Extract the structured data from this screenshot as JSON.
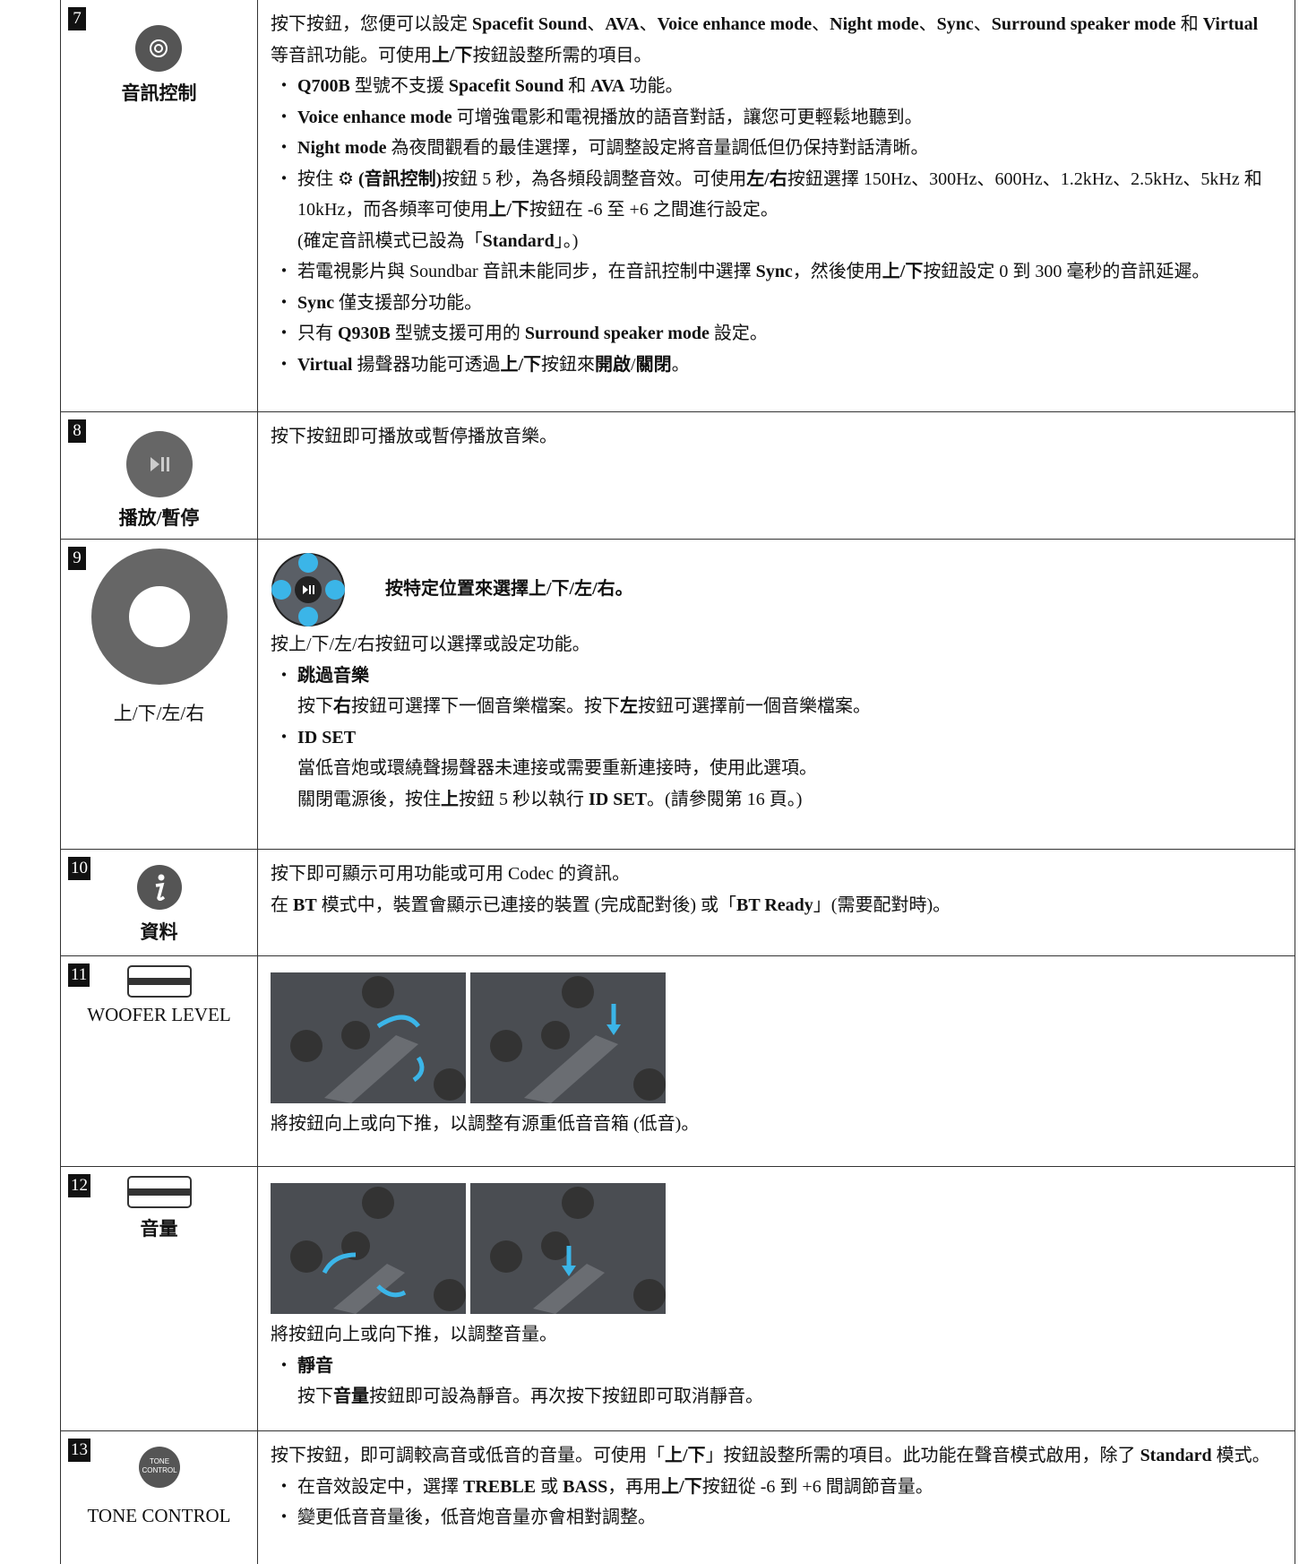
{
  "rows": [
    {
      "number": "7",
      "label": "音訊控制",
      "label_bold": true,
      "paragraphs": [
        {
          "segments": [
            "按下按鈕，您便可以設定 ",
            {
              "b": "Spacefit Sound"
            },
            "、",
            {
              "b": "AVA"
            },
            "、",
            {
              "b": "Voice enhance mode"
            },
            "、",
            {
              "b": "Night mode"
            },
            "、",
            {
              "b": "Sync"
            },
            "、",
            {
              "b": "Surround speaker mode"
            },
            " 和 ",
            {
              "b": "Virtual"
            },
            " 等音訊功能。可使用",
            {
              "b": "上/下"
            },
            "按鈕設整所需的項目。"
          ]
        },
        {
          "bullet": "・",
          "segments": [
            {
              "b": "Q700B"
            },
            " 型號不支援 ",
            {
              "b": "Spacefit Sound"
            },
            " 和 ",
            {
              "b": "AVA"
            },
            " 功能。"
          ]
        },
        {
          "bullet": "・",
          "segments": [
            {
              "b": "Voice enhance mode"
            },
            " 可增強電影和電視播放的語音對話，讓您可更輕鬆地聽到。"
          ]
        },
        {
          "bullet": "・",
          "segments": [
            {
              "b": "Night mode"
            },
            " 為夜間觀看的最佳選擇，可調整設定將音量調低但仍保持對話清晰。"
          ]
        },
        {
          "bullet": "・",
          "segments": [
            "按住 ⚙ ",
            {
              "b": "(音訊控制)"
            },
            "按鈕 5 秒，為各頻段調整音效。可使用",
            {
              "b": "左/右"
            },
            "按鈕選擇 150Hz、300Hz、600Hz、1.2kHz、2.5kHz、5kHz 和 10kHz，而各頻率可使用",
            {
              "b": "上/下"
            },
            "按鈕在 -6 至 +6 之間進行設定。"
          ]
        },
        {
          "indent": true,
          "segments": [
            "(確定音訊模式已設為「",
            {
              "b": "Standard"
            },
            "」。)"
          ]
        },
        {
          "bullet": "・",
          "segments": [
            "若電視影片與 Soundbar 音訊未能同步，在音訊控制中選擇 ",
            {
              "b": "Sync"
            },
            "，然後使用",
            {
              "b": "上/下"
            },
            "按鈕設定 0 到 300 毫秒的音訊延遲。"
          ]
        },
        {
          "bullet": "・",
          "segments": [
            {
              "b": "Sync"
            },
            " 僅支援部分功能。"
          ]
        },
        {
          "bullet": "・",
          "segments": [
            "只有 ",
            {
              "b": "Q930B"
            },
            " 型號支援可用的 ",
            {
              "b": "Surround speaker mode"
            },
            " 設定。"
          ]
        },
        {
          "bullet": "・",
          "segments": [
            {
              "b": "Virtual"
            },
            " 揚聲器功能可透過",
            {
              "b": "上/下"
            },
            "按鈕來",
            {
              "b": "開啟"
            },
            "/",
            {
              "b": "關閉"
            },
            "。"
          ]
        }
      ]
    },
    {
      "number": "8",
      "label": "播放/暫停",
      "label_bold": true,
      "paragraphs": [
        {
          "segments": [
            "按下按鈕即可播放或暫停播放音樂。"
          ]
        }
      ]
    },
    {
      "number": "9",
      "label": "上/下/左/右",
      "label_bold": false,
      "caption": "按特定位置來選擇上/下/左/右。",
      "paragraphs": [
        {
          "segments": [
            "按上/下/左/右按鈕可以選擇或設定功能。"
          ]
        },
        {
          "bullet": "・",
          "segments": [
            {
              "b": "跳過音樂"
            }
          ]
        },
        {
          "indent": true,
          "segments": [
            "按下",
            {
              "b": "右"
            },
            "按鈕可選擇下一個音樂檔案。按下",
            {
              "b": "左"
            },
            "按鈕可選擇前一個音樂檔案。"
          ]
        },
        {
          "bullet": "・",
          "segments": [
            {
              "b": "ID SET"
            }
          ]
        },
        {
          "indent": true,
          "segments": [
            "當低音炮或環繞聲揚聲器未連接或需要重新連接時，使用此選項。"
          ]
        },
        {
          "indent": true,
          "segments": [
            "關閉電源後，按住",
            {
              "b": "上"
            },
            "按鈕 5 秒以執行 ",
            {
              "b": "ID SET"
            },
            "。(請參閱第 16 頁。)"
          ]
        }
      ]
    },
    {
      "number": "10",
      "label": "資料",
      "label_bold": true,
      "paragraphs": [
        {
          "segments": [
            "按下即可顯示可用功能或可用 Codec 的資訊。"
          ]
        },
        {
          "segments": [
            "在 ",
            {
              "b": "BT"
            },
            " 模式中，裝置會顯示已連接的裝置 (完成配對後) 或「",
            {
              "b": "BT Ready"
            },
            "」(需要配對時)。"
          ]
        }
      ]
    },
    {
      "number": "11",
      "label": "WOOFER LEVEL",
      "label_bold": false,
      "paragraphs": [
        {
          "segments": [
            "將按鈕向上或向下推，以調整有源重低音音箱 (低音)。"
          ]
        }
      ]
    },
    {
      "number": "12",
      "label": "音量",
      "label_bold": true,
      "paragraphs": [
        {
          "segments": [
            "將按鈕向上或向下推，以調整音量。"
          ]
        },
        {
          "bullet": "・",
          "segments": [
            {
              "b": "靜音"
            }
          ]
        },
        {
          "indent": true,
          "segments": [
            "按下",
            {
              "b": "音量"
            },
            "按鈕即可設為靜音。再次按下按鈕即可取消靜音。"
          ]
        }
      ]
    },
    {
      "number": "13",
      "label": "TONE CONTROL",
      "label_bold": false,
      "icon_text": [
        "TONE",
        "CONTROL"
      ],
      "paragraphs": [
        {
          "segments": [
            "按下按鈕，即可調較高音或低音的音量。可使用「",
            {
              "b": "上/下"
            },
            "」按鈕設整所需的項目。此功能在聲音模式啟用，除了 ",
            {
              "b": "Standard"
            },
            " 模式。"
          ]
        },
        {
          "bullet": "・",
          "segments": [
            "在音效設定中，選擇 ",
            {
              "b": "TREBLE"
            },
            " 或 ",
            {
              "b": "BASS"
            },
            "，再用",
            {
              "b": "上/下"
            },
            "按鈕從 -6 到 +6 間調節音量。"
          ]
        },
        {
          "bullet": "・",
          "segments": [
            "變更低音音量後，低音炮音量亦會相對調整。"
          ]
        }
      ]
    }
  ]
}
